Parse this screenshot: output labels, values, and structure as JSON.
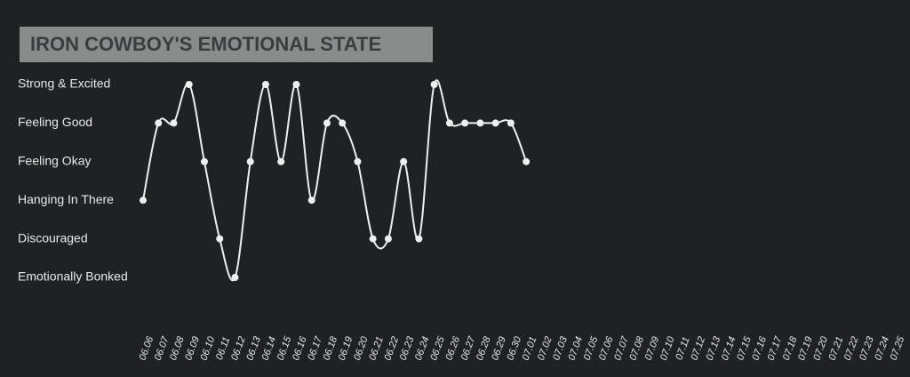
{
  "chart_data": {
    "type": "line",
    "title": "IRON COWBOY'S EMOTIONAL STATE",
    "categories": [
      "06.06",
      "06.07",
      "06.08",
      "06.09",
      "06.10",
      "06.11",
      "06.12",
      "06.13",
      "06.14",
      "06.15",
      "06.16",
      "06.17",
      "06.18",
      "06.19",
      "06.20",
      "06.21",
      "06.22",
      "06.23",
      "06.24",
      "06.25",
      "06.26",
      "06.27",
      "06.28",
      "06.29",
      "06.30",
      "07.01",
      "07.02",
      "07.03",
      "07.04",
      "07.05",
      "07.06",
      "07.07",
      "07.08",
      "07.09",
      "07.10",
      "07.11",
      "07.12",
      "07.13",
      "07.14",
      "07.15",
      "07.16",
      "07.17",
      "07.18",
      "07.19",
      "07.20",
      "07.21",
      "07.22",
      "07.23",
      "07.24",
      "07.25"
    ],
    "values": [
      2,
      4,
      4,
      5,
      3,
      1,
      0,
      3,
      5,
      3,
      5,
      2,
      4,
      4,
      3,
      1,
      1,
      3,
      1,
      5,
      4,
      4,
      4,
      4,
      4,
      3,
      null,
      null,
      null,
      null,
      null,
      null,
      null,
      null,
      null,
      null,
      null,
      null,
      null,
      null,
      null,
      null,
      null,
      null,
      null,
      null,
      null,
      null,
      null,
      null
    ],
    "color": "#eeeeee",
    "ylim": [
      0,
      5
    ],
    "yticks": [
      {
        "value": 0,
        "label": "Emotionally Bonked"
      },
      {
        "value": 1,
        "label": "Discouraged"
      },
      {
        "value": 2,
        "label": "Hanging In There"
      },
      {
        "value": 3,
        "label": "Feeling Okay"
      },
      {
        "value": 4,
        "label": "Feeling Good"
      },
      {
        "value": 5,
        "label": "Strong & Excited"
      }
    ],
    "grid": false
  }
}
